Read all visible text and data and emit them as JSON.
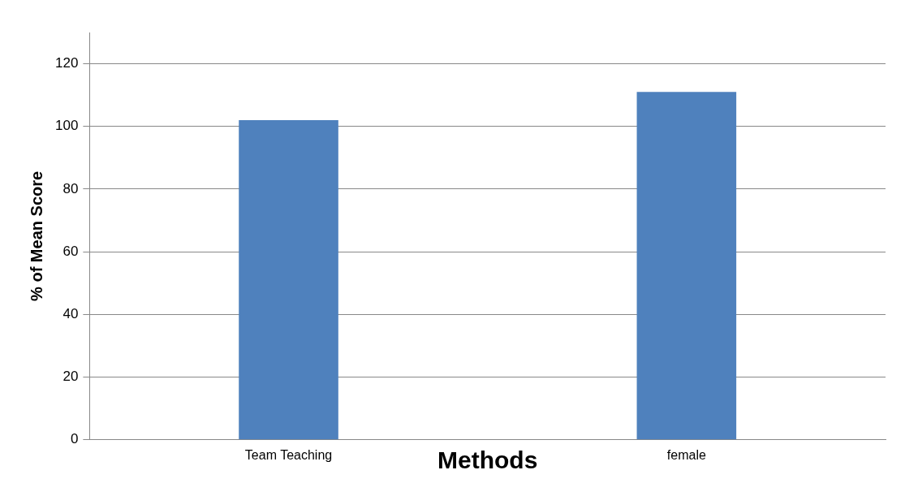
{
  "chart_data": {
    "type": "bar",
    "xlabel": "Methods",
    "ylabel": "% of Mean Score",
    "categories": [
      "Team Teaching",
      "female"
    ],
    "values": [
      102,
      111
    ],
    "color": "#4f81bd",
    "ylim": [
      0,
      130
    ],
    "yticks": [
      0,
      20,
      40,
      60,
      80,
      100,
      120
    ],
    "grid": "y",
    "legend": false
  }
}
